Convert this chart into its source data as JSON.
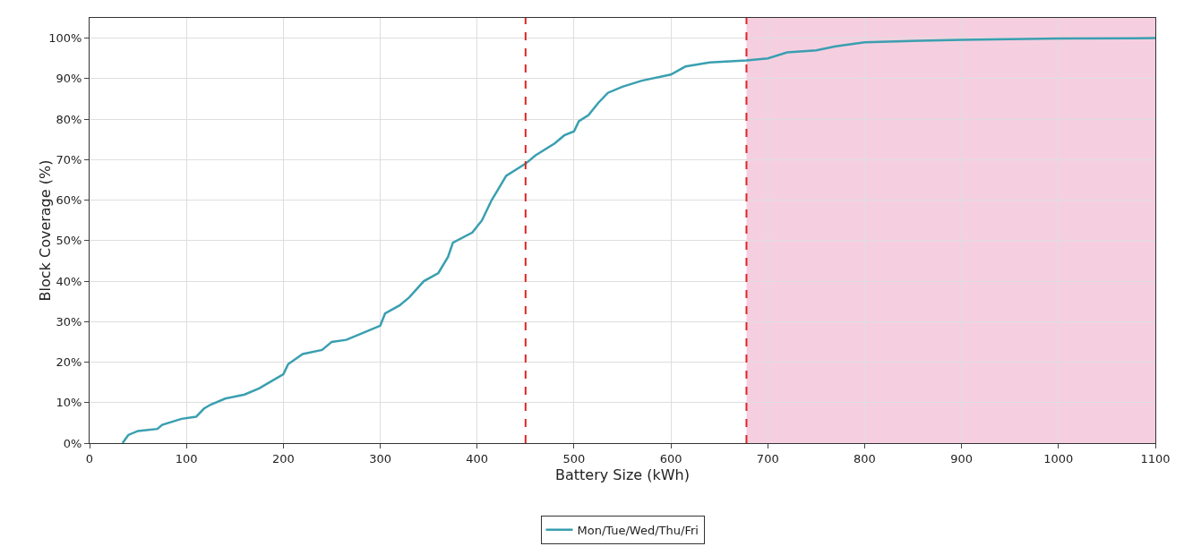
{
  "chart_data": {
    "type": "line",
    "xlabel": "Battery Size (kWh)",
    "ylabel": "Block Coverage (%)",
    "xlim": [
      0,
      1100
    ],
    "xticks": [
      0,
      100,
      200,
      300,
      400,
      500,
      600,
      700,
      800,
      900,
      1000,
      1100
    ],
    "ylim": [
      0,
      105
    ],
    "yticks": [
      {
        "value": 0,
        "label": "0%"
      },
      {
        "value": 10,
        "label": "10%"
      },
      {
        "value": 20,
        "label": "20%"
      },
      {
        "value": 30,
        "label": "30%"
      },
      {
        "value": 40,
        "label": "40%"
      },
      {
        "value": 50,
        "label": "50%"
      },
      {
        "value": 60,
        "label": "60%"
      },
      {
        "value": 70,
        "label": "70%"
      },
      {
        "value": 80,
        "label": "80%"
      },
      {
        "value": 90,
        "label": "90%"
      },
      {
        "value": 100,
        "label": "100%"
      }
    ],
    "grid": true,
    "legend": "bottom",
    "marker": "none",
    "line_style": "solid",
    "series": [
      {
        "name": "Mon/Tue/Wed/Thu/Fri",
        "color": "#3a9fb0",
        "x": [
          34,
          40,
          50,
          70,
          75,
          95,
          110,
          118,
          125,
          140,
          160,
          175,
          200,
          205,
          220,
          240,
          250,
          265,
          280,
          300,
          305,
          320,
          330,
          345,
          360,
          370,
          375,
          395,
          405,
          415,
          420,
          430,
          450,
          460,
          480,
          490,
          500,
          505,
          515,
          525,
          535,
          550,
          570,
          600,
          615,
          640,
          678,
          700,
          720,
          750,
          770,
          800,
          900,
          1000,
          1100
        ],
        "values": [
          0,
          2,
          3,
          3.5,
          4.5,
          6,
          6.5,
          8.5,
          9.5,
          11,
          12,
          13.5,
          17,
          19.5,
          22,
          23,
          25,
          25.5,
          27,
          29,
          32,
          34,
          36,
          40,
          42,
          46,
          49.5,
          52,
          55,
          60,
          62,
          66,
          69,
          71,
          74,
          76,
          77,
          79.5,
          81,
          84,
          86.5,
          88,
          89.5,
          91,
          93,
          94,
          94.5,
          95,
          96.5,
          97,
          98,
          99,
          99.6,
          99.9,
          100
        ]
      }
    ],
    "ref_lines": [
      {
        "axis": "x",
        "value": 450,
        "color": "#e02424",
        "line_style": "dashed"
      },
      {
        "axis": "x",
        "value": 678,
        "color": "#e02424",
        "line_style": "dashed"
      }
    ],
    "bands": [
      {
        "axis": "x",
        "from": 678,
        "to": 1100,
        "color": "#f5cfe0"
      }
    ]
  }
}
